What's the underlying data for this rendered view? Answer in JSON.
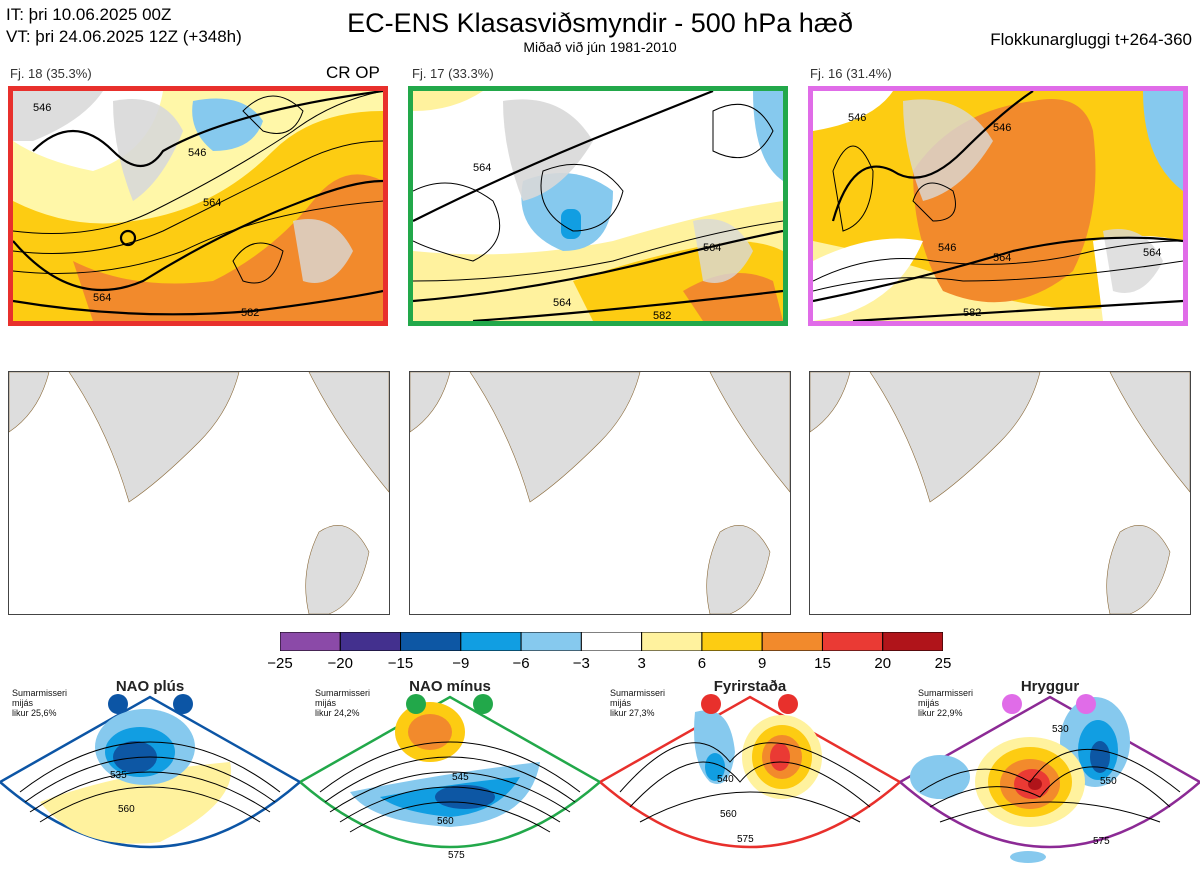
{
  "header": {
    "init_line": "IT: þri 10.06.2025 00Z",
    "valid_line": "VT: þri 24.06.2025 12Z  (+348h)",
    "title": "EC-ENS Klasasviðsmyndir - 500 hPa hæð",
    "subtitle": "Miðað við jún 1981-2010",
    "window": "Flokkunargluggi t+264-360"
  },
  "clusters": [
    {
      "label": "Fj. 18 (35.3%)",
      "tag": "CR OP",
      "border": "#e8302c",
      "contours": [
        "546",
        "546",
        "564",
        "564",
        "582"
      ]
    },
    {
      "label": "Fj. 17 (33.3%)",
      "tag": "",
      "border": "#22a84a",
      "contours": [
        "564",
        "564",
        "564",
        "582"
      ]
    },
    {
      "label": "Fj. 16 (31.4%)",
      "tag": "",
      "border": "#e06ce8",
      "contours": [
        "546",
        "546",
        "546",
        "564",
        "564",
        "582"
      ]
    }
  ],
  "colorbar": {
    "ticks": [
      "−25",
      "−20",
      "−15",
      "−9",
      "−6",
      "−3",
      "3",
      "6",
      "9",
      "15",
      "20",
      "25"
    ],
    "colors": [
      "#8b4aa8",
      "#43308e",
      "#0d57a4",
      "#119ee2",
      "#86c9ee",
      "#ffffff",
      "#fff29e",
      "#fdcc12",
      "#f28a2c",
      "#ea3a34",
      "#b0141a"
    ]
  },
  "regimes": [
    {
      "name": "NAO plús",
      "season": "Sumarmisseri",
      "mean": "mijás",
      "likelihood": "likur 25,6%",
      "color": "#0c55a5",
      "contours": [
        "535",
        "560"
      ]
    },
    {
      "name": "NAO mínus",
      "season": "Sumarmisseri",
      "mean": "mijás",
      "likelihood": "likur 24,2%",
      "color": "#22a84a",
      "contours": [
        "545",
        "560",
        "575"
      ]
    },
    {
      "name": "Fyrirstaða",
      "season": "Sumarmisseri",
      "mean": "mijás",
      "likelihood": "likur 27,3%",
      "color": "#e8302c",
      "contours": [
        "540",
        "560",
        "575"
      ]
    },
    {
      "name": "Hryggur",
      "season": "Sumarmisseri",
      "mean": "mijás",
      "likelihood": "likur 22,9%",
      "color": "#e06ce8",
      "contours": [
        "530",
        "550",
        "575"
      ]
    }
  ]
}
